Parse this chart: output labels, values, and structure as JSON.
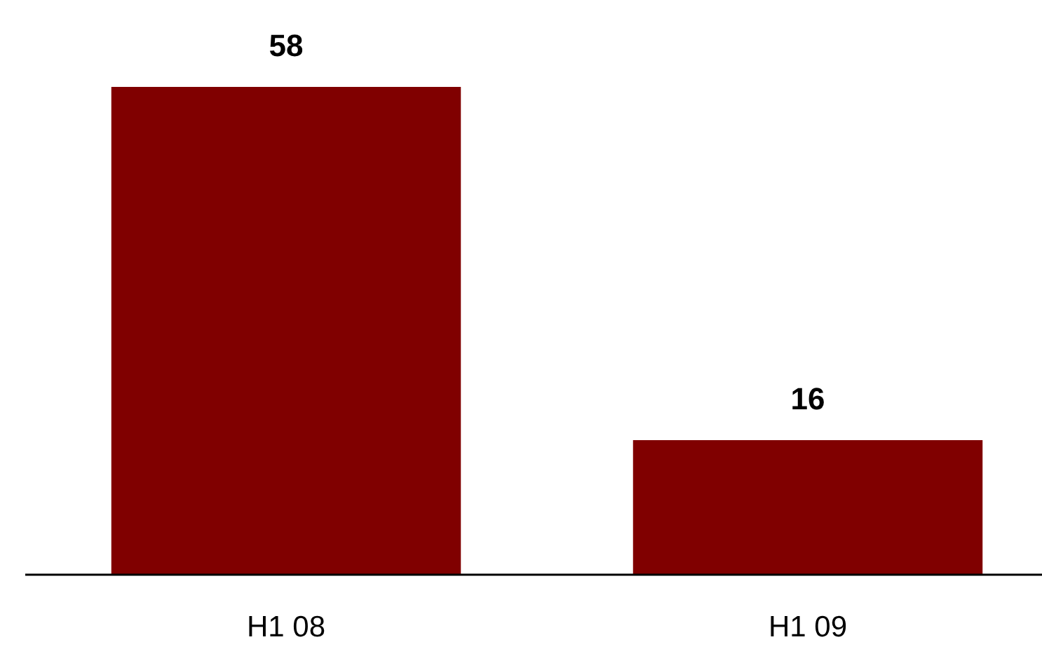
{
  "chart_data": {
    "type": "bar",
    "categories": [
      "H1 08",
      "H1 09"
    ],
    "values": [
      58,
      16
    ],
    "color": "#800000",
    "data_labels": true
  }
}
